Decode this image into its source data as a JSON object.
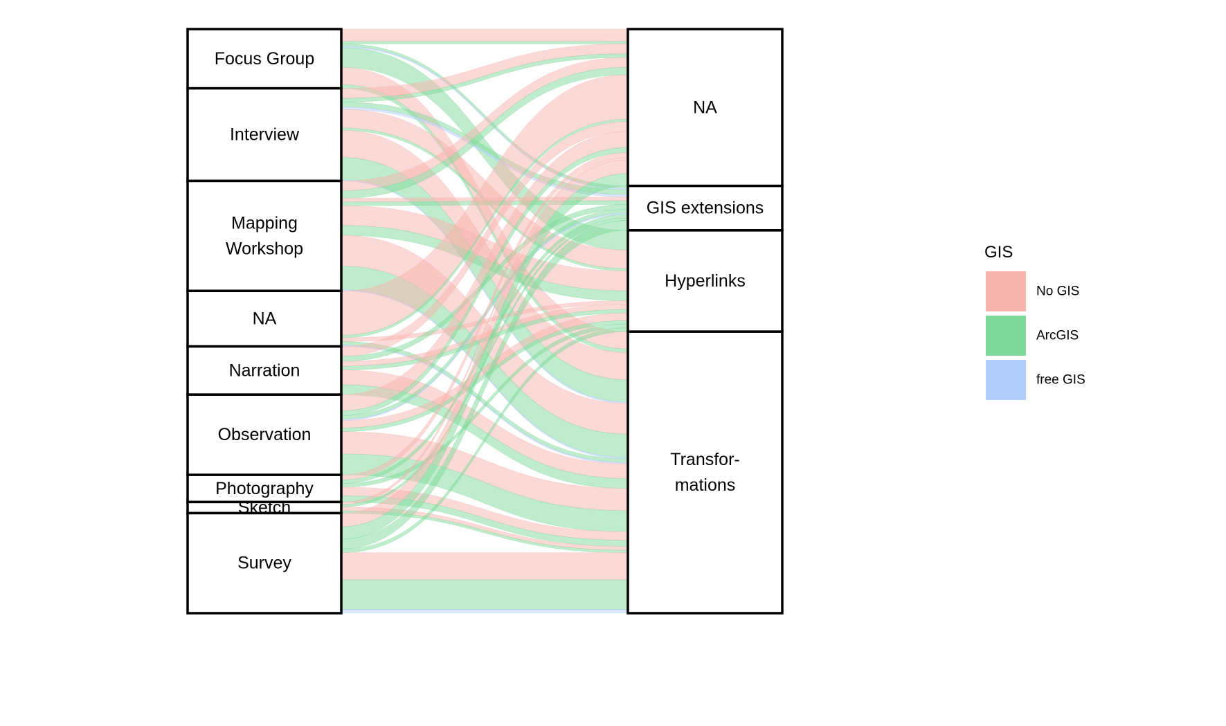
{
  "chart_data": {
    "type": "alluvial",
    "axes": [
      {
        "strata": [
          "Focus Group",
          "Interview",
          "Mapping Workshop",
          "NA",
          "Narration",
          "Observation",
          "Photography",
          "Sketch",
          "Survey"
        ],
        "display_lines": [
          [
            "Focus Group"
          ],
          [
            "Interview"
          ],
          [
            "Mapping",
            "Workshop"
          ],
          [
            "NA"
          ],
          [
            "Narration"
          ],
          [
            "Observation"
          ],
          [
            "Photography"
          ],
          [
            "Sketch"
          ],
          [
            "Survey"
          ]
        ]
      },
      {
        "strata": [
          "NA",
          "GIS extensions",
          "Hyperlinks",
          "Transformations"
        ],
        "display_lines": [
          [
            "NA"
          ],
          [
            "GIS extensions"
          ],
          [
            "Hyperlinks"
          ],
          [
            "Transfor-",
            "mations"
          ]
        ]
      }
    ],
    "legend": {
      "title": "GIS",
      "position": "right",
      "items": [
        {
          "label": "No GIS",
          "color": "#f8b4ae"
        },
        {
          "label": "ArcGIS",
          "color": "#7fd99a"
        },
        {
          "label": "free GIS",
          "color": "#b3cdfa"
        }
      ]
    },
    "flow_order": [
      "NA",
      "GIS extensions",
      "Hyperlinks",
      "Transformations"
    ],
    "flows": [
      {
        "from": "Focus Group",
        "to": "NA",
        "gis": "No GIS",
        "value": 1
      },
      {
        "from": "Focus Group",
        "to": "NA",
        "gis": "ArcGIS",
        "value": 0.2
      },
      {
        "from": "Focus Group",
        "to": "GIS extensions",
        "gis": "ArcGIS",
        "value": 0.2
      },
      {
        "from": "Focus Group",
        "to": "GIS extensions",
        "gis": "free GIS",
        "value": 0.1
      },
      {
        "from": "Focus Group",
        "to": "Hyperlinks",
        "gis": "ArcGIS",
        "value": 1.6
      },
      {
        "from": "Focus Group",
        "to": "Transformations",
        "gis": "No GIS",
        "value": 1.4
      },
      {
        "from": "Focus Group",
        "to": "Transformations",
        "gis": "ArcGIS",
        "value": 0.3
      },
      {
        "from": "Interview",
        "to": "NA",
        "gis": "No GIS",
        "value": 0.8
      },
      {
        "from": "Interview",
        "to": "NA",
        "gis": "ArcGIS",
        "value": 0.3
      },
      {
        "from": "Interview",
        "to": "GIS extensions",
        "gis": "ArcGIS",
        "value": 0.4
      },
      {
        "from": "Interview",
        "to": "GIS extensions",
        "gis": "free GIS",
        "value": 0.2
      },
      {
        "from": "Interview",
        "to": "Hyperlinks",
        "gis": "No GIS",
        "value": 1.5
      },
      {
        "from": "Interview",
        "to": "Hyperlinks",
        "gis": "ArcGIS",
        "value": 0.2
      },
      {
        "from": "Interview",
        "to": "Transformations",
        "gis": "No GIS",
        "value": 2.2
      },
      {
        "from": "Interview",
        "to": "Transformations",
        "gis": "ArcGIS",
        "value": 1.8
      },
      {
        "from": "Interview",
        "to": "Transformations",
        "gis": "free GIS",
        "value": 0.1
      },
      {
        "from": "Mapping Workshop",
        "to": "NA",
        "gis": "No GIS",
        "value": 0.8
      },
      {
        "from": "Mapping Workshop",
        "to": "NA",
        "gis": "ArcGIS",
        "value": 0.6
      },
      {
        "from": "Mapping Workshop",
        "to": "GIS extensions",
        "gis": "No GIS",
        "value": 0.3
      },
      {
        "from": "Mapping Workshop",
        "to": "GIS extensions",
        "gis": "ArcGIS",
        "value": 0.3
      },
      {
        "from": "Mapping Workshop",
        "to": "Hyperlinks",
        "gis": "No GIS",
        "value": 1.6
      },
      {
        "from": "Mapping Workshop",
        "to": "Hyperlinks",
        "gis": "ArcGIS",
        "value": 0.8
      },
      {
        "from": "Mapping Workshop",
        "to": "Transformations",
        "gis": "No GIS",
        "value": 2.5
      },
      {
        "from": "Mapping Workshop",
        "to": "Transformations",
        "gis": "ArcGIS",
        "value": 1.9
      },
      {
        "from": "Mapping Workshop",
        "to": "Transformations",
        "gis": "free GIS",
        "value": 0.1
      },
      {
        "from": "NA",
        "to": "NA",
        "gis": "No GIS",
        "value": 3.6
      },
      {
        "from": "NA",
        "to": "NA",
        "gis": "ArcGIS",
        "value": 0.2
      },
      {
        "from": "NA",
        "to": "Hyperlinks",
        "gis": "No GIS",
        "value": 0.3
      },
      {
        "from": "NA",
        "to": "Transformations",
        "gis": "ArcGIS",
        "value": 0.3
      },
      {
        "from": "NA",
        "to": "Transformations",
        "gis": "free GIS",
        "value": 0.1
      },
      {
        "from": "Narration",
        "to": "NA",
        "gis": "No GIS",
        "value": 0.8
      },
      {
        "from": "Narration",
        "to": "GIS extensions",
        "gis": "ArcGIS",
        "value": 0.4
      },
      {
        "from": "Narration",
        "to": "Hyperlinks",
        "gis": "No GIS",
        "value": 0.4
      },
      {
        "from": "Narration",
        "to": "Hyperlinks",
        "gis": "ArcGIS",
        "value": 0.3
      },
      {
        "from": "Narration",
        "to": "Transformations",
        "gis": "No GIS",
        "value": 1.2
      },
      {
        "from": "Narration",
        "to": "Transformations",
        "gis": "ArcGIS",
        "value": 0.8
      },
      {
        "from": "Observation",
        "to": "NA",
        "gis": "No GIS",
        "value": 1.3
      },
      {
        "from": "Observation",
        "to": "NA",
        "gis": "ArcGIS",
        "value": 0.4
      },
      {
        "from": "Observation",
        "to": "GIS extensions",
        "gis": "ArcGIS",
        "value": 0.3
      },
      {
        "from": "Observation",
        "to": "GIS extensions",
        "gis": "free GIS",
        "value": 0.1
      },
      {
        "from": "Observation",
        "to": "Hyperlinks",
        "gis": "No GIS",
        "value": 0.6
      },
      {
        "from": "Observation",
        "to": "Hyperlinks",
        "gis": "ArcGIS",
        "value": 0.3
      },
      {
        "from": "Observation",
        "to": "Transformations",
        "gis": "No GIS",
        "value": 1.8
      },
      {
        "from": "Observation",
        "to": "Transformations",
        "gis": "ArcGIS",
        "value": 1.7
      },
      {
        "from": "Photography",
        "to": "NA",
        "gis": "No GIS",
        "value": 0.4
      },
      {
        "from": "Photography",
        "to": "GIS extensions",
        "gis": "ArcGIS",
        "value": 0.3
      },
      {
        "from": "Photography",
        "to": "Hyperlinks",
        "gis": "ArcGIS",
        "value": 0.3
      },
      {
        "from": "Photography",
        "to": "Transformations",
        "gis": "No GIS",
        "value": 0.7
      },
      {
        "from": "Photography",
        "to": "Transformations",
        "gis": "ArcGIS",
        "value": 0.5
      },
      {
        "from": "Sketch",
        "to": "NA",
        "gis": "No GIS",
        "value": 0.2
      },
      {
        "from": "Sketch",
        "to": "GIS extensions",
        "gis": "ArcGIS",
        "value": 0.2
      },
      {
        "from": "Sketch",
        "to": "Transformations",
        "gis": "No GIS",
        "value": 0.3
      },
      {
        "from": "Sketch",
        "to": "Transformations",
        "gis": "ArcGIS",
        "value": 0.2
      },
      {
        "from": "Survey",
        "to": "NA",
        "gis": "No GIS",
        "value": 1.1
      },
      {
        "from": "Survey",
        "to": "NA",
        "gis": "ArcGIS",
        "value": 1.0
      },
      {
        "from": "Survey",
        "to": "GIS extensions",
        "gis": "ArcGIS",
        "value": 0.8
      },
      {
        "from": "Survey",
        "to": "Hyperlinks",
        "gis": "ArcGIS",
        "value": 0.3
      },
      {
        "from": "Survey",
        "to": "Transformations",
        "gis": "No GIS",
        "value": 2.2
      },
      {
        "from": "Survey",
        "to": "Transformations",
        "gis": "ArcGIS",
        "value": 2.4
      },
      {
        "from": "Survey",
        "to": "Transformations",
        "gis": "free GIS",
        "value": 0.3
      }
    ]
  }
}
